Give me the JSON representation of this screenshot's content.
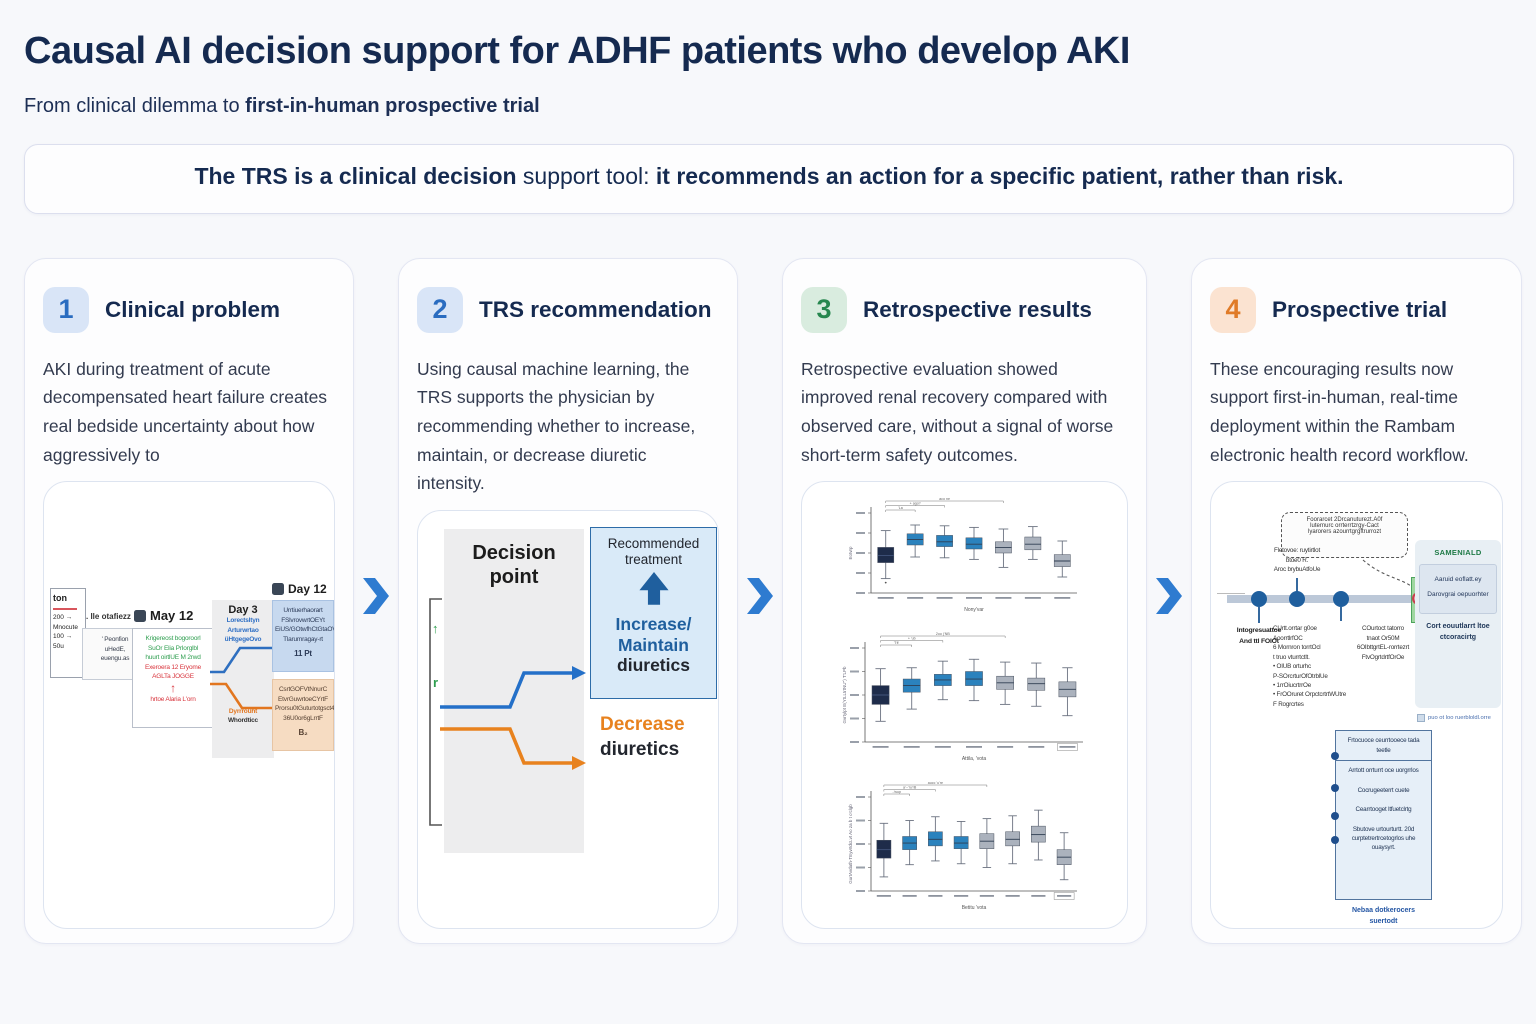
{
  "page": {
    "title": "Causal AI decision support for ADHF patients who develop AKI",
    "subtitle": {
      "prefix": "From clinical dilemma to ",
      "bold": "first-in-human prospective trial"
    },
    "banner": {
      "bold1": "The TRS is a clinical decision",
      "mid": " support tool: ",
      "bold2": "it recommends an action for a specific patient, rather than risk."
    }
  },
  "panels": [
    {
      "number": "1",
      "title": "Clinical problem",
      "body": "AKI during treatment of acute decompensated heart failure creates real bedside uncertainty about how aggressively to"
    },
    {
      "number": "2",
      "title": "TRS recommendation",
      "body": "Using causal machine learning, the TRS supports the physician by recommending whether to increase, maintain, or decrease diuretic intensity."
    },
    {
      "number": "3",
      "title": "Retrospective results",
      "body": "Retrospective evaluation showed improved renal recovery compared with observed care, without a signal of worse short-term safety outcomes."
    },
    {
      "number": "4",
      "title": "Prospective trial",
      "body": "These encouraging results now support first-in-human, real-time deployment within the Rambam electronic health record workflow."
    }
  ],
  "figure1": {
    "lab_card": {
      "title": "ton",
      "rows": [
        "200 →",
        "Mnocute",
        "100 →",
        "50u"
      ]
    },
    "note_label": ". Ile otafiezz",
    "note_card": [
      "' Peonfion",
      "uHedE,",
      "euengu.as"
    ],
    "may_label": "May 12",
    "may_lines_green": [
      "Krigereost bogoroorl",
      "SuOr Elia PrIorglbl",
      "huurt oirtlUE M 2rwd"
    ],
    "may_lines_red": [
      "Exeroera 12 Eryome",
      "AGLTa JOGGE"
    ],
    "may_arrow": "↑",
    "may_bottom_red": "hrtoe Alaria L'orn",
    "day3_label": "Day 3",
    "day3_blue_lines": [
      "Lorectsltyn",
      "Arturwrtao",
      "üHtgegeOvo"
    ],
    "day3_orange_lines": [
      "Dyrrroüht",
      "Whordticc"
    ],
    "day12_label": "Day 12",
    "day12_blue_lines": [
      "Urrtiuerhaorart",
      "FSlvrovwrtOEYt",
      "EiUS/GOtwfhCtGtaOV",
      "Tlarumragay-rt"
    ],
    "day12_blue_value": "11 Pt",
    "day12_peach_lines": [
      "CsrtGOFVtNnurC",
      "EtvrGuwrtoeCYrtF",
      "Prorsu0tGuturtotgsct4",
      "36U0or6gLrrtF"
    ],
    "day12_peach_value": "B₂"
  },
  "figure2": {
    "decision_line1": "Decision",
    "decision_line2": "point",
    "bracket_glyph_up": "↑",
    "bracket_glyph_r": "r",
    "recommended_line1": "Recommended",
    "recommended_line2": "treatment",
    "increase_line1": "Increase/",
    "increase_line2": "Maintain",
    "increase_black": "diuretics",
    "decrease_orange": "Decrease",
    "decrease_black": "diuretics"
  },
  "chart_data": [
    {
      "type": "box",
      "title": "",
      "xlabel": "Nony'var",
      "ylabel": "Eotvrp",
      "value_note": "axis tick labels illegible in source; values on relative 0–10 scale",
      "categories": [
        "Tduubon'-ut",
        "T'5 u b",
        "bttttb,'ru'eb",
        "Zbtu-b",
        "trUt'tub",
        "bttrootoe 'ut",
        "utotrre butotrot"
      ],
      "boxes": [
        {
          "color": "navy",
          "low": 1.8,
          "q1": 3.8,
          "median": 4.7,
          "q3": 5.7,
          "high": 7.8
        },
        {
          "color": "blue",
          "low": 4.5,
          "q1": 6.0,
          "median": 6.7,
          "q3": 7.4,
          "high": 8.5
        },
        {
          "color": "blue",
          "low": 4.4,
          "q1": 5.8,
          "median": 6.4,
          "q3": 7.2,
          "high": 8.4
        },
        {
          "color": "blue",
          "low": 4.2,
          "q1": 5.5,
          "median": 6.1,
          "q3": 6.9,
          "high": 8.2
        },
        {
          "color": "gray",
          "low": 3.2,
          "q1": 5.0,
          "median": 5.7,
          "q3": 6.4,
          "high": 8.0
        },
        {
          "color": "gray",
          "low": 4.2,
          "q1": 5.4,
          "median": 6.1,
          "q3": 7.0,
          "high": 8.3
        },
        {
          "color": "gray",
          "low": 2.0,
          "q1": 3.3,
          "median": 4.0,
          "q3": 4.8,
          "high": 6.5
        }
      ],
      "brackets": [
        {
          "from": 0,
          "to": 4,
          "label": "aco ne"
        },
        {
          "from": 0,
          "to": 2,
          "label": "+ ago?"
        },
        {
          "from": 0,
          "to": 1,
          "label": "'La"
        }
      ],
      "outlier": {
        "box": 0,
        "value": 1.3
      },
      "legend_box": false
    },
    {
      "type": "box",
      "title": "",
      "xlabel": "Attila, 'vota",
      "ylabel": "Gvrtylpt E(YtLLtrtNU'') T'LPb",
      "value_note": "axis tick labels illegible in source; values on relative 0–10 scale",
      "categories": [
        "Tduubon'-ut",
        "T'5 u b",
        "bttttb,'ru'eb",
        "ZBlu-d",
        "trUt'tub",
        "bttrootoe 'ut",
        "utotrre boxed"
      ],
      "boxes": [
        {
          "color": "navy",
          "low": 2.2,
          "q1": 4.0,
          "median": 5.0,
          "q3": 6.0,
          "high": 7.8
        },
        {
          "color": "blue",
          "low": 3.5,
          "q1": 5.3,
          "median": 6.0,
          "q3": 6.7,
          "high": 7.9
        },
        {
          "color": "blue",
          "low": 4.5,
          "q1": 6.0,
          "median": 6.6,
          "q3": 7.2,
          "high": 8.6
        },
        {
          "color": "blue",
          "low": 4.4,
          "q1": 6.0,
          "median": 6.7,
          "q3": 7.5,
          "high": 8.8
        },
        {
          "color": "gray",
          "low": 4.0,
          "q1": 5.6,
          "median": 6.3,
          "q3": 7.0,
          "high": 8.5
        },
        {
          "color": "gray",
          "low": 3.8,
          "q1": 5.5,
          "median": 6.2,
          "q3": 6.8,
          "high": 8.4
        },
        {
          "color": "gray",
          "low": 2.8,
          "q1": 4.8,
          "median": 5.6,
          "q3": 6.4,
          "high": 7.9
        }
      ],
      "brackets": [
        {
          "from": 0,
          "to": 4,
          "label": "2oo ('NB"
        },
        {
          "from": 0,
          "to": 2,
          "label": "+ 'ub"
        },
        {
          "from": 0,
          "to": 1,
          "label": "'Tff"
        }
      ],
      "legend_box": true
    },
    {
      "type": "box",
      "title": "",
      "xlabel": "Betitu 'vota",
      "ylabel": "GurtAvdath-TEyvrtdcLvt Ao za b t o'clgb",
      "value_note": "axis tick labels illegible in source; values on relative 0–10 scale",
      "categories": [
        "Tduuadcbt'r'ut",
        "T'5 u tU",
        "bttrttb,'ru'eb",
        "TtBcu-g",
        "aUt'tub",
        "BtUt'tub",
        "Etrrrooou'rol",
        "boxed"
      ],
      "boxes": [
        {
          "color": "navy",
          "low": 1.5,
          "q1": 3.5,
          "median": 4.4,
          "q3": 5.4,
          "high": 7.2
        },
        {
          "color": "blue",
          "low": 2.8,
          "q1": 4.4,
          "median": 5.1,
          "q3": 5.8,
          "high": 7.5
        },
        {
          "color": "blue",
          "low": 3.2,
          "q1": 4.8,
          "median": 5.5,
          "q3": 6.3,
          "high": 7.9
        },
        {
          "color": "blue",
          "low": 2.9,
          "q1": 4.5,
          "median": 5.1,
          "q3": 5.8,
          "high": 7.4
        },
        {
          "color": "gray",
          "low": 2.5,
          "q1": 4.5,
          "median": 5.3,
          "q3": 6.1,
          "high": 7.7
        },
        {
          "color": "gray",
          "low": 2.9,
          "q1": 4.8,
          "median": 5.5,
          "q3": 6.3,
          "high": 8.0
        },
        {
          "color": "gray",
          "low": 3.3,
          "q1": 5.2,
          "median": 6.0,
          "q3": 6.9,
          "high": 8.6
        },
        {
          "color": "gray",
          "low": 1.2,
          "q1": 2.8,
          "median": 3.6,
          "q3": 4.4,
          "high": 6.2
        }
      ],
      "brackets": [
        {
          "from": 0,
          "to": 4,
          "label": "aucc 'u're"
        },
        {
          "from": 0,
          "to": 2,
          "label": "a'--'ru'rB"
        },
        {
          "from": 0,
          "to": 1,
          "label": "-'wup"
        }
      ],
      "legend_box": true
    }
  ],
  "figure4": {
    "bubble_lines": [
      "Foorarcet 2Drcanuturezt.A0f",
      "luternurc orrterrtzrgy-Cact",
      "lyarorers azourrtgrgftrurrozt"
    ],
    "timeline": {
      "above_dot2_lines": [
        "Fletovoe: ruytirtlot",
        "btoe0 R.",
        "Aroc brybuAtfoUe"
      ],
      "below_dot1_lines": [
        "Intogresuattoe",
        "And ttl FOIOt"
      ],
      "below_dot2_lines": [
        "CUrtt.orrtar g0oe",
        "AoorrtlrfOC",
        "6 Mornron torrtOcl",
        "t truo vturrtctlt.",
        "• OIUB orturhc",
        "P-SOrcrturOfOtrblUe",
        "• 1rrOiucrtrrOe",
        "• FrOOruret OrpctcrtrtWUtre",
        "F Rogrcrtes"
      ],
      "below_dot3_lines": [
        "COurtoct tatorro",
        "tnaot Or50M",
        "6OIbttgrtEL-rorrtezrt",
        "FtvOgrtdrtfOrOe"
      ]
    },
    "side_panel": {
      "header": "SAMENIALD",
      "box_rows": [
        "Aaruid eoflatt.ey",
        "Darovgrai oepuorhter"
      ],
      "footer_lines": [
        "Cort eouutlarrt ltoe",
        "ctcoracirtg"
      ],
      "legend": "puo ot loo ruerbloldl.orre"
    },
    "steps_box": {
      "rows": [
        "Frtocuoce ceurrtooece tada teetle",
        "Arrtott orrturrt oce uorgrrlos",
        "Cocrugeeterrt cuete",
        "Cearrtooget ltfuetclrtg",
        "Sbutove urtourturtt. 20d curptetrertrcetogrlos uhe ouaysyrt."
      ],
      "caption_lines": [
        "Nebaa dotkerocers",
        "suertodt"
      ]
    }
  },
  "colors": {
    "accent_blue": "#2e7bd0",
    "navy_text": "#152a50",
    "chart_navy": "#1e2c4a",
    "chart_blue": "#2b82bd",
    "chart_gray": "#abb2bd",
    "orange": "#e8821e",
    "green": "#2e9e4f",
    "red": "#d8343c"
  }
}
